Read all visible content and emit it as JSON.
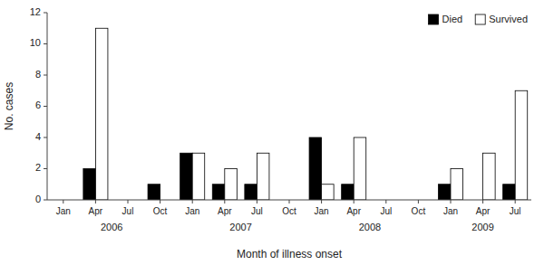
{
  "chart_data": {
    "type": "bar",
    "categories": [
      "Jan",
      "Apr",
      "Jul",
      "Oct",
      "Jan",
      "Apr",
      "Jul",
      "Oct",
      "Jan",
      "Apr",
      "Jul",
      "Oct",
      "Jan",
      "Apr",
      "Jul"
    ],
    "series": [
      {
        "name": "Died",
        "color": "#000000",
        "values": [
          0,
          2,
          0,
          1,
          3,
          1,
          1,
          0,
          4,
          1,
          0,
          0,
          1,
          0,
          1
        ]
      },
      {
        "name": "Survived",
        "color": "#ffffff",
        "values": [
          0,
          11,
          0,
          0,
          3,
          2,
          3,
          0,
          1,
          4,
          0,
          0,
          2,
          3,
          7
        ]
      }
    ],
    "annotations": [
      {
        "text": "2006",
        "x": 1.5
      },
      {
        "text": "2007",
        "x": 5.5
      },
      {
        "text": "2008",
        "x": 9.5
      },
      {
        "text": "2009",
        "x": 13.0
      }
    ],
    "x_label": "Month of illness onset",
    "y_label": "No. cases",
    "ylim": [
      0,
      12
    ],
    "yticks": [
      0,
      2,
      4,
      6,
      8,
      10,
      12
    ],
    "legend": "upper right"
  }
}
